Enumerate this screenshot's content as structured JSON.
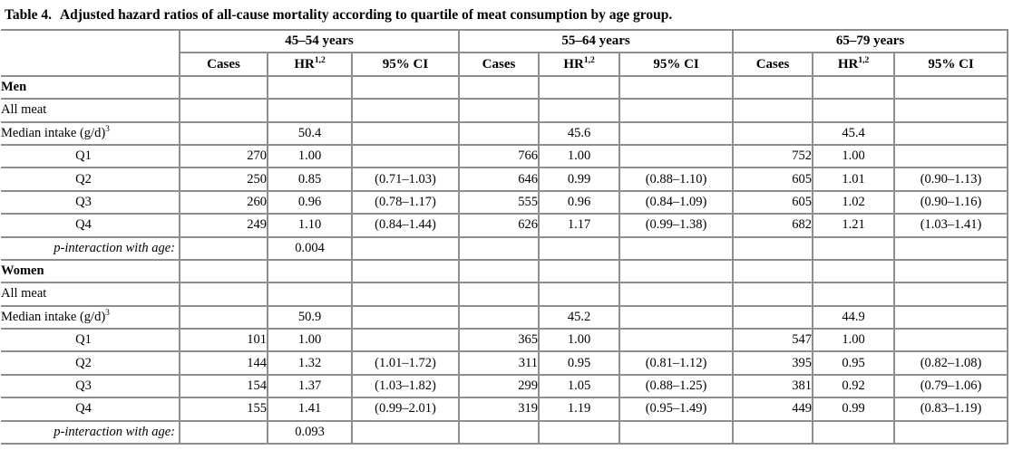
{
  "page": {
    "title_label": "Table 4.",
    "title_text": "Adjusted hazard ratios of all-cause mortality according to quartile of meat consumption by age group."
  },
  "colors": {
    "border": "#8e8e8e",
    "text": "#000000",
    "background": "#ffffff"
  },
  "table": {
    "groups": [
      {
        "label": "45–54 years"
      },
      {
        "label": "55–64 years"
      },
      {
        "label": "65–79 years"
      }
    ],
    "subheaders": {
      "cases": "Cases",
      "hr": "HR",
      "hr_sup": "1,2",
      "ci": "95% CI"
    },
    "rows": [
      {
        "label": "Men",
        "label_style": "section",
        "cells": [
          "",
          "",
          "",
          "",
          "",
          "",
          "",
          "",
          ""
        ]
      },
      {
        "label": "All meat",
        "label_style": "plain",
        "cells": [
          "",
          "",
          "",
          "",
          "",
          "",
          "",
          "",
          ""
        ]
      },
      {
        "label": "Median intake (g/d)",
        "label_sup": "3",
        "label_style": "plain",
        "cells": [
          "",
          "50.4",
          "",
          "",
          "45.6",
          "",
          "",
          "45.4",
          ""
        ]
      },
      {
        "label": "Q1",
        "label_style": "quartile",
        "cells": [
          "270",
          "1.00",
          "",
          "766",
          "1.00",
          "",
          "752",
          "1.00",
          ""
        ]
      },
      {
        "label": "Q2",
        "label_style": "quartile",
        "cells": [
          "250",
          "0.85",
          "(0.71–1.03)",
          "646",
          "0.99",
          "(0.88–1.10)",
          "605",
          "1.01",
          "(0.90–1.13)"
        ]
      },
      {
        "label": "Q3",
        "label_style": "quartile",
        "cells": [
          "260",
          "0.96",
          "(0.78–1.17)",
          "555",
          "0.96",
          "(0.84–1.09)",
          "605",
          "1.02",
          "(0.90–1.16)"
        ]
      },
      {
        "label": "Q4",
        "label_style": "quartile",
        "cells": [
          "249",
          "1.10",
          "(0.84–1.44)",
          "626",
          "1.17",
          "(0.99–1.38)",
          "682",
          {
            "t": "1.21",
            "bold": true
          },
          {
            "t": "(1.03–1.41)",
            "bold": true
          }
        ]
      },
      {
        "label": "p-interaction with age:",
        "label_style": "pinteraction",
        "cells": [
          "",
          {
            "t": "0.004",
            "bold": true
          },
          "",
          "",
          "",
          "",
          "",
          "",
          ""
        ]
      },
      {
        "label": "Women",
        "label_style": "section",
        "cells": [
          "",
          "",
          "",
          "",
          "",
          "",
          "",
          "",
          ""
        ]
      },
      {
        "label": "All meat",
        "label_style": "plain",
        "cells": [
          "",
          "",
          "",
          "",
          "",
          "",
          "",
          "",
          ""
        ]
      },
      {
        "label": "Median intake (g/d)",
        "label_sup": "3",
        "label_style": "plain",
        "cells": [
          "",
          "50.9",
          "",
          "",
          "45.2",
          "",
          "",
          "44.9",
          ""
        ]
      },
      {
        "label": "Q1",
        "label_style": "quartile",
        "cells": [
          "101",
          "1.00",
          "",
          "365",
          "1.00",
          "",
          "547",
          "1.00",
          ""
        ]
      },
      {
        "label": "Q2",
        "label_style": "quartile",
        "cells": [
          "144",
          {
            "t": "1.32",
            "bold": true
          },
          {
            "t": "(1.01–1.72)",
            "bold": true
          },
          "311",
          "0.95",
          "(0.81–1.12)",
          "395",
          "0.95",
          "(0.82–1.08)"
        ]
      },
      {
        "label": "Q3",
        "label_style": "quartile",
        "cells": [
          "154",
          {
            "t": "1.37",
            "bold": true
          },
          {
            "t": "(1.03–1.82)",
            "bold": true
          },
          "299",
          "1.05",
          "(0.88–1.25)",
          "381",
          "0.92",
          "(0.79–1.06)"
        ]
      },
      {
        "label": "Q4",
        "label_style": "quartile",
        "cells": [
          "155",
          "1.41",
          "(0.99–2.01)",
          "319",
          "1.19",
          "(0.95–1.49)",
          "449",
          "0.99",
          "(0.83–1.19)"
        ]
      },
      {
        "label": "p-interaction with age:",
        "label_style": "pinteraction",
        "cells": [
          "",
          "0.093",
          "",
          "",
          "",
          "",
          "",
          "",
          ""
        ]
      }
    ]
  }
}
